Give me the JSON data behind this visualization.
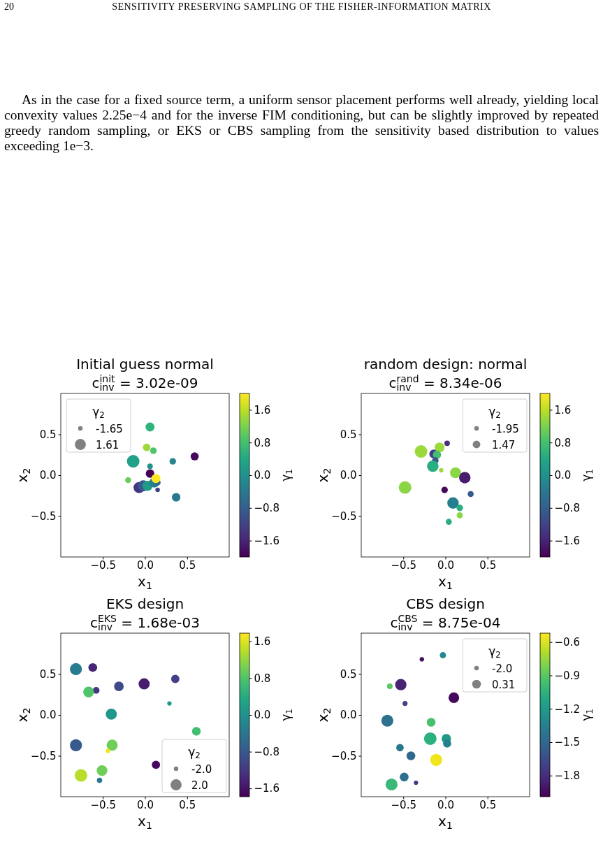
{
  "chart_data": [
    {
      "type": "scatter",
      "title": "Initial guess normal",
      "subtitle": "c$^{init}$$_{inv}$ = 3.02e-09",
      "annotations": [
        "20",
        "SENSITIVITY PRESERVING SAMPLING OF THE FISHER-INFORMATION MATRIX",
        "As in the case for a fixed source term, a uniform sensor placement performs well already, yielding local convexity values 2.25e−4 and for the inverse FIM conditioning, but can be slightly improved by repeated greedy random sampling, or EKS or CBS sampling from the sensitivity based distribution to values exceeding 1e−3."
      ],
      "x": [
        0.06,
        0.02,
        0.1,
        -0.14,
        0.06,
        0.33,
        0.59,
        0.06,
        -0.2,
        0.15,
        0.37,
        -0.07,
        -0.02,
        0.03,
        0.11,
        0.15,
        0.13
      ],
      "values": [
        0.59,
        0.34,
        0.3,
        0.17,
        0.11,
        0.17,
        0.23,
        0.02,
        -0.06,
        -0.18,
        -0.27,
        -0.15,
        -0.13,
        -0.13,
        -0.09,
        -0.09,
        -0.04
      ],
      "cvalues": [
        0.6,
        1.4,
        0.9,
        0.3,
        0,
        -0.2,
        -1.9,
        -2.0,
        1.1,
        -1.2,
        -0.4,
        -1.4,
        -0.9,
        0.2,
        -0.3,
        -0.7,
        2.0
      ],
      "sizes": [
        0.52,
        0.36,
        0.27,
        1,
        0.19,
        0.27,
        0.41,
        0.46,
        0.23,
        0.13,
        0.46,
        0.77,
        0.77,
        0.64,
        0.64,
        0.23,
        0.52
      ],
      "size_legend": [
        {
          "value": 0.13,
          "label": "-1.65"
        },
        {
          "value": 0.77,
          "label": "1.61"
        }
      ],
      "legend_title": "γ$_{2}$",
      "xlim": [
        -1,
        1
      ],
      "ylim": [
        -1,
        1
      ],
      "xticks": [
        {
          "value": -0.5,
          "label": "−0.5"
        },
        {
          "value": 0,
          "label": "0.0"
        },
        {
          "value": 0.5,
          "label": "0.5"
        }
      ],
      "yticks": [
        {
          "value": -0.5,
          "label": "−0.5"
        },
        {
          "value": 0,
          "label": "0.0"
        },
        {
          "value": 0.5,
          "label": "0.5"
        }
      ],
      "clim": [
        -2,
        2
      ],
      "cticks": [
        {
          "value": -1.6,
          "label": "−1.6"
        },
        {
          "value": -0.8,
          "label": "−0.8"
        },
        {
          "value": 0,
          "label": "0.0"
        },
        {
          "value": 0.8,
          "label": "0.8"
        },
        {
          "value": 1.6,
          "label": "1.6"
        }
      ],
      "xlabel": "x$_{1}$",
      "ylabel": "x$_{2}$",
      "clabel": "γ$_{1}$",
      "marker": "circle"
    },
    {
      "type": "scatter",
      "title": "random design: normal",
      "subtitle": "c$^{rand}$$_{inv}$ = 8.34e-06",
      "x": [
        0.02,
        -0.29,
        -0.07,
        -0.14,
        -0.1,
        -0.12,
        -0.15,
        -0.05,
        0.12,
        0.23,
        -0.48,
        -0.01,
        0.3,
        0.09,
        0.17,
        0.17,
        0.04
      ],
      "values": [
        0.39,
        0.29,
        0.34,
        0.26,
        0.25,
        0.18,
        0.11,
        0.06,
        0.03,
        -0.03,
        -0.15,
        -0.18,
        -0.23,
        -0.34,
        -0.4,
        -0.49,
        -0.57
      ],
      "cvalues": [
        -1.5,
        1.4,
        1.4,
        -1.3,
        0.8,
        -1.0,
        0.5,
        1.4,
        1.3,
        -1.7,
        1.3,
        -1.9,
        -0.9,
        -0.3,
        0.5,
        1.3,
        0.5
      ],
      "sizes": [
        0.19,
        1,
        0.61,
        0.48,
        0.43,
        0.27,
        0.83,
        0.12,
        0.76,
        0.83,
        1,
        0.27,
        0.23,
        0.83,
        0.27,
        0.23,
        0.23
      ],
      "size_legend": [
        {
          "value": 0.13,
          "label": "-1.95"
        },
        {
          "value": 0.37,
          "label": "1.47"
        }
      ],
      "legend_title": "γ$_{2}$",
      "xlim": [
        -1,
        1
      ],
      "ylim": [
        -1,
        1
      ],
      "xticks": [
        {
          "value": -0.5,
          "label": "−0.5"
        },
        {
          "value": 0,
          "label": "0.0"
        },
        {
          "value": 0.5,
          "label": "0.5"
        }
      ],
      "yticks": [
        {
          "value": -0.5,
          "label": "−0.5"
        },
        {
          "value": 0,
          "label": "0.0"
        },
        {
          "value": 0.5,
          "label": "0.5"
        }
      ],
      "clim": [
        -2,
        2
      ],
      "cticks": [
        {
          "value": -1.6,
          "label": "−1.6"
        },
        {
          "value": -0.8,
          "label": "−0.8"
        },
        {
          "value": 0,
          "label": "0.0"
        },
        {
          "value": 0.8,
          "label": "0.8"
        },
        {
          "value": 1.6,
          "label": "1.6"
        }
      ],
      "xlabel": "x$_{1}$",
      "ylabel": "x$_{2}$",
      "clabel": "γ$_{1}$",
      "marker": "circle"
    },
    {
      "type": "scatter",
      "title": "EKS design",
      "subtitle": "c$^{EKS}$$_{inv}$ = 1.68e-03",
      "x": [
        -0.82,
        -0.62,
        -0.58,
        -0.67,
        -0.31,
        -0.01,
        0.36,
        0.29,
        -0.4,
        0.61,
        -0.82,
        -0.39,
        -0.44,
        0.13,
        -0.76,
        -0.51,
        -0.54
      ],
      "values": [
        0.56,
        0.58,
        0.3,
        0.28,
        0.35,
        0.38,
        0.44,
        0.14,
        0.01,
        -0.2,
        -0.37,
        -0.37,
        -0.44,
        -0.61,
        -0.74,
        -0.68,
        -0.8
      ],
      "cvalues": [
        -0.3,
        -1.4,
        -1.2,
        0.8,
        -1.0,
        -1.5,
        -1.1,
        0.1,
        0.1,
        0.7,
        -0.8,
        1.0,
        1.7,
        -1.7,
        1.4,
        1.0,
        -0.4
      ],
      "sizes": [
        0.92,
        0.48,
        0.29,
        0.72,
        0.59,
        0.78,
        0.43,
        0.12,
        0.78,
        0.48,
        0.92,
        0.78,
        0.12,
        0.43,
        1,
        0.72,
        0.18
      ],
      "size_legend": [
        {
          "value": 0.13,
          "label": "-2.0"
        },
        {
          "value": 0.78,
          "label": "2.0"
        }
      ],
      "legend_title": "γ$_{2}$",
      "xlim": [
        -1,
        1
      ],
      "ylim": [
        -1,
        1
      ],
      "xticks": [
        {
          "value": -0.5,
          "label": "−0.5"
        },
        {
          "value": 0,
          "label": "0.0"
        },
        {
          "value": 0.5,
          "label": "0.5"
        }
      ],
      "yticks": [
        {
          "value": -0.5,
          "label": "−0.5"
        },
        {
          "value": 0,
          "label": "0.0"
        },
        {
          "value": 0.5,
          "label": "0.5"
        }
      ],
      "clim": [
        -1.78,
        1.78
      ],
      "cticks": [
        {
          "value": -1.6,
          "label": "−1.6"
        },
        {
          "value": -0.8,
          "label": "−0.8"
        },
        {
          "value": 0,
          "label": "0.0"
        },
        {
          "value": 0.8,
          "label": "0.8"
        },
        {
          "value": 1.6,
          "label": "1.6"
        }
      ],
      "xlabel": "x$_{1}$",
      "ylabel": "x$_{2}$",
      "clabel": "γ$_{1}$",
      "marker": "circle"
    },
    {
      "type": "scatter",
      "title": "CBS design",
      "subtitle": "c$^{CBS}$$_{inv}$ = 8.75e-04",
      "x": [
        -0.03,
        -0.28,
        -0.53,
        -0.66,
        -0.48,
        0.1,
        -0.69,
        -0.17,
        -0.18,
        0.01,
        0.02,
        -0.54,
        -0.41,
        -0.11,
        -0.49,
        -0.35,
        -0.64
      ],
      "values": [
        0.73,
        0.68,
        0.37,
        0.35,
        0.14,
        0.21,
        -0.07,
        -0.09,
        -0.29,
        -0.29,
        -0.35,
        -0.4,
        -0.5,
        -0.55,
        -0.76,
        -0.83,
        -0.85
      ],
      "cvalues": [
        -1.3,
        -1.95,
        -1.85,
        -0.9,
        -1.7,
        -1.95,
        -1.45,
        -0.95,
        -1.05,
        -1.2,
        -1.35,
        -1.4,
        -1.5,
        -0.55,
        -1.45,
        -1.75,
        -1.0
      ],
      "sizes": [
        0.25,
        0.12,
        0.81,
        0.2,
        0.16,
        0.72,
        0.9,
        0.49,
        1,
        0.56,
        0.42,
        0.36,
        0.49,
        0.9,
        0.49,
        0.12,
        0.9
      ],
      "size_legend": [
        {
          "value": 0.13,
          "label": "-2.0"
        },
        {
          "value": 0.49,
          "label": "0.31"
        }
      ],
      "legend_title": "γ$_{2}$",
      "xlim": [
        -1,
        1
      ],
      "ylim": [
        -1,
        1
      ],
      "xticks": [
        {
          "value": -0.5,
          "label": "−0.5"
        },
        {
          "value": 0,
          "label": "0.0"
        },
        {
          "value": 0.5,
          "label": "0.5"
        }
      ],
      "yticks": [
        {
          "value": -0.5,
          "label": "−0.5"
        },
        {
          "value": 0,
          "label": "0.0"
        },
        {
          "value": 0.5,
          "label": "0.5"
        }
      ],
      "clim": [
        -1.99,
        -0.52
      ],
      "cticks": [
        {
          "value": -1.8,
          "label": "−1.8"
        },
        {
          "value": -1.5,
          "label": "−1.5"
        },
        {
          "value": -1.2,
          "label": "−1.2"
        },
        {
          "value": -0.9,
          "label": "−0.9"
        },
        {
          "value": -0.6,
          "label": "−0.6"
        }
      ],
      "xlabel": "x$_{1}$",
      "ylabel": "x$_{2}$",
      "clabel": "γ$_{1}$",
      "marker": "circle"
    }
  ]
}
